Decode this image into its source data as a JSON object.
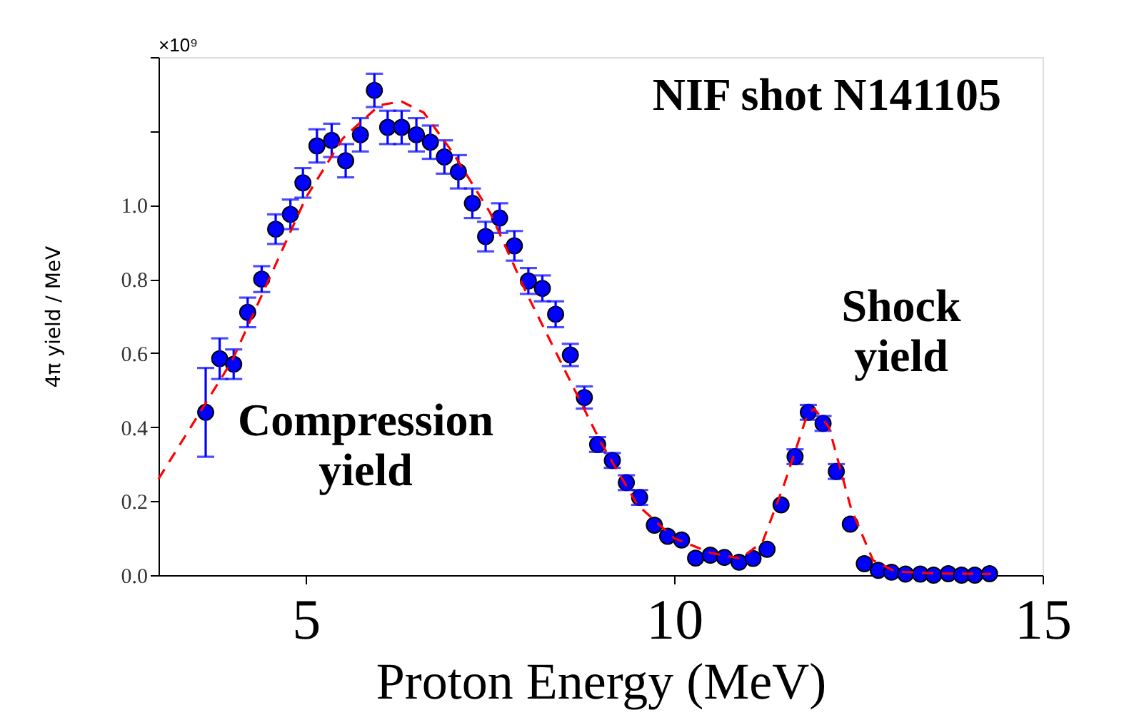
{
  "chart_data": {
    "type": "scatter",
    "xlabel": "Proton Energy (MeV)",
    "ylabel": "4π yield / MeV",
    "xlim": [
      3,
      15
    ],
    "xticks": [
      5,
      10,
      15
    ],
    "ylim": [
      0,
      1.4
    ],
    "yticks": [
      {
        "value": 0,
        "label": "0.0"
      },
      {
        "value": 0.2,
        "label": "0.2"
      },
      {
        "value": 0.4,
        "label": "0.4"
      },
      {
        "value": 0.6,
        "label": "0.6"
      },
      {
        "value": 0.8,
        "label": "0.8"
      },
      {
        "value": 1.0,
        "label": "1.0"
      },
      {
        "value": 1.2,
        "label": null
      },
      {
        "value": 1.4,
        "label": null
      }
    ],
    "grid": false,
    "legend": false,
    "annotations": [
      "×10⁹",
      "NIF shot N141105",
      "Compression yield",
      "Shock yield"
    ],
    "series": [
      {
        "type": "scatter",
        "marker": "circle",
        "color": "#0000ff",
        "x": [
          3.64,
          3.83,
          4.02,
          4.21,
          4.4,
          4.59,
          4.79,
          4.96,
          5.15,
          5.35,
          5.54,
          5.74,
          5.93,
          6.11,
          6.3,
          6.5,
          6.69,
          6.88,
          7.07,
          7.26,
          7.44,
          7.63,
          7.83,
          8.02,
          8.21,
          8.39,
          8.59,
          8.78,
          8.96,
          9.16,
          9.35,
          9.53,
          9.73,
          9.91,
          10.1,
          10.29,
          10.49,
          10.68,
          10.88,
          11.07,
          11.26,
          11.45,
          11.64,
          11.82,
          12.02,
          12.2,
          12.39,
          12.58,
          12.77,
          12.95,
          13.14,
          13.34,
          13.52,
          13.72,
          13.9,
          14.08,
          14.28
        ],
        "values": [
          0.44,
          0.585,
          0.57,
          0.71,
          0.8,
          0.935,
          0.975,
          1.06,
          1.16,
          1.175,
          1.12,
          1.19,
          1.31,
          1.21,
          1.21,
          1.19,
          1.17,
          1.13,
          1.09,
          1.005,
          0.915,
          0.965,
          0.89,
          0.795,
          0.775,
          0.705,
          0.595,
          0.48,
          0.353,
          0.31,
          0.25,
          0.21,
          0.135,
          0.105,
          0.095,
          0.046,
          0.054,
          0.048,
          0.035,
          0.045,
          0.07,
          0.19,
          0.32,
          0.44,
          0.41,
          0.28,
          0.138,
          0.031,
          0.013,
          0.008,
          0.003,
          0.003,
          0.0,
          0.004,
          0.0,
          0.0,
          0.004
        ],
        "errors": [
          [
            0.32,
            0.56
          ],
          0.055,
          0.04,
          0.04,
          0.035,
          0.04,
          0.04,
          0.04,
          0.045,
          0.045,
          0.045,
          0.045,
          0.045,
          0.045,
          0.045,
          0.045,
          0.045,
          0.045,
          0.045,
          0.04,
          0.04,
          0.04,
          0.04,
          0.035,
          0.035,
          0.035,
          0.03,
          0.03,
          0.02,
          0.02,
          0.02,
          0.02,
          null,
          null,
          null,
          null,
          null,
          null,
          null,
          null,
          null,
          null,
          0.02,
          0.02,
          0.02,
          0.02,
          null,
          null,
          null,
          null,
          null,
          null,
          null,
          null,
          null,
          null,
          null
        ]
      },
      {
        "type": "line",
        "line_style": "dashed",
        "color": "#ff0000",
        "x": [
          3.0,
          3.5,
          4.0,
          4.5,
          5.0,
          5.5,
          6.0,
          6.3,
          6.6,
          7.0,
          7.5,
          8.0,
          8.5,
          9.0,
          9.5,
          10.0,
          10.5,
          10.9,
          11.2,
          11.5,
          11.8,
          11.9,
          12.1,
          12.4,
          12.7,
          13.0,
          13.5,
          14.3
        ],
        "values": [
          0.26,
          0.42,
          0.58,
          0.8,
          1.02,
          1.18,
          1.27,
          1.28,
          1.25,
          1.14,
          0.98,
          0.76,
          0.56,
          0.36,
          0.19,
          0.1,
          0.06,
          0.045,
          0.09,
          0.25,
          0.43,
          0.45,
          0.4,
          0.18,
          0.04,
          0.01,
          0.005,
          0.003
        ]
      }
    ]
  }
}
